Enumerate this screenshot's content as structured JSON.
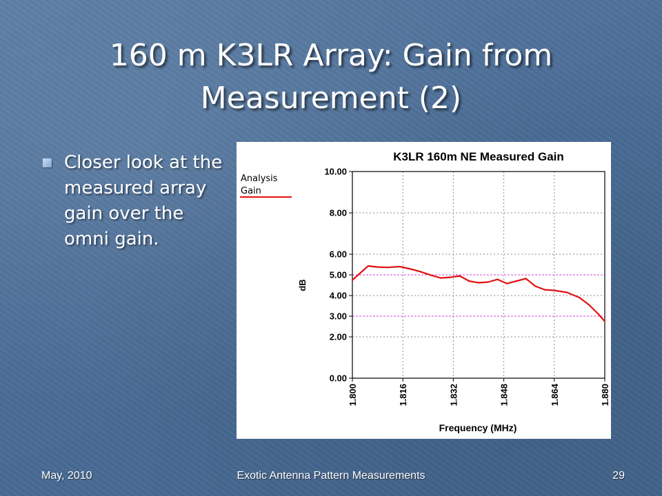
{
  "slide": {
    "title_line1": "160 m K3LR Array: Gain from",
    "title_line2": "Measurement (2)",
    "bullet": "Closer look at the measured array gain over the omni gain."
  },
  "footer": {
    "date": "May, 2010",
    "center": "Exotic Antenna Pattern Measurements",
    "page": "29"
  },
  "chart_data": {
    "type": "line",
    "title": "K3LR 160m NE Measured Gain",
    "xlabel": "Frequency (MHz)",
    "ylabel": "dB",
    "xlim": [
      1.8,
      1.88
    ],
    "ylim": [
      0,
      10
    ],
    "xticks": [
      "1.800",
      "1.816",
      "1.832",
      "1.848",
      "1.864",
      "1.880"
    ],
    "yticks": [
      "0.00",
      "2.00",
      "3.00",
      "4.00",
      "5.00",
      "6.00",
      "8.00",
      "10.00"
    ],
    "reference_lines": [
      3.0,
      5.0
    ],
    "legend": {
      "title": "Analysis",
      "entries": [
        "Gain"
      ],
      "position": "left"
    },
    "series": [
      {
        "name": "Gain",
        "color": "#e01010",
        "x": [
          1.8,
          1.805,
          1.808,
          1.811,
          1.815,
          1.818,
          1.821,
          1.825,
          1.828,
          1.831,
          1.834,
          1.837,
          1.84,
          1.843,
          1.846,
          1.849,
          1.852,
          1.855,
          1.858,
          1.861,
          1.864,
          1.868,
          1.872,
          1.875,
          1.878,
          1.88
        ],
        "y": [
          4.75,
          5.43,
          5.38,
          5.36,
          5.4,
          5.3,
          5.18,
          4.98,
          4.85,
          4.88,
          4.95,
          4.7,
          4.62,
          4.65,
          4.78,
          4.58,
          4.7,
          4.82,
          4.45,
          4.28,
          4.25,
          4.15,
          3.9,
          3.55,
          3.1,
          2.75
        ]
      }
    ]
  }
}
